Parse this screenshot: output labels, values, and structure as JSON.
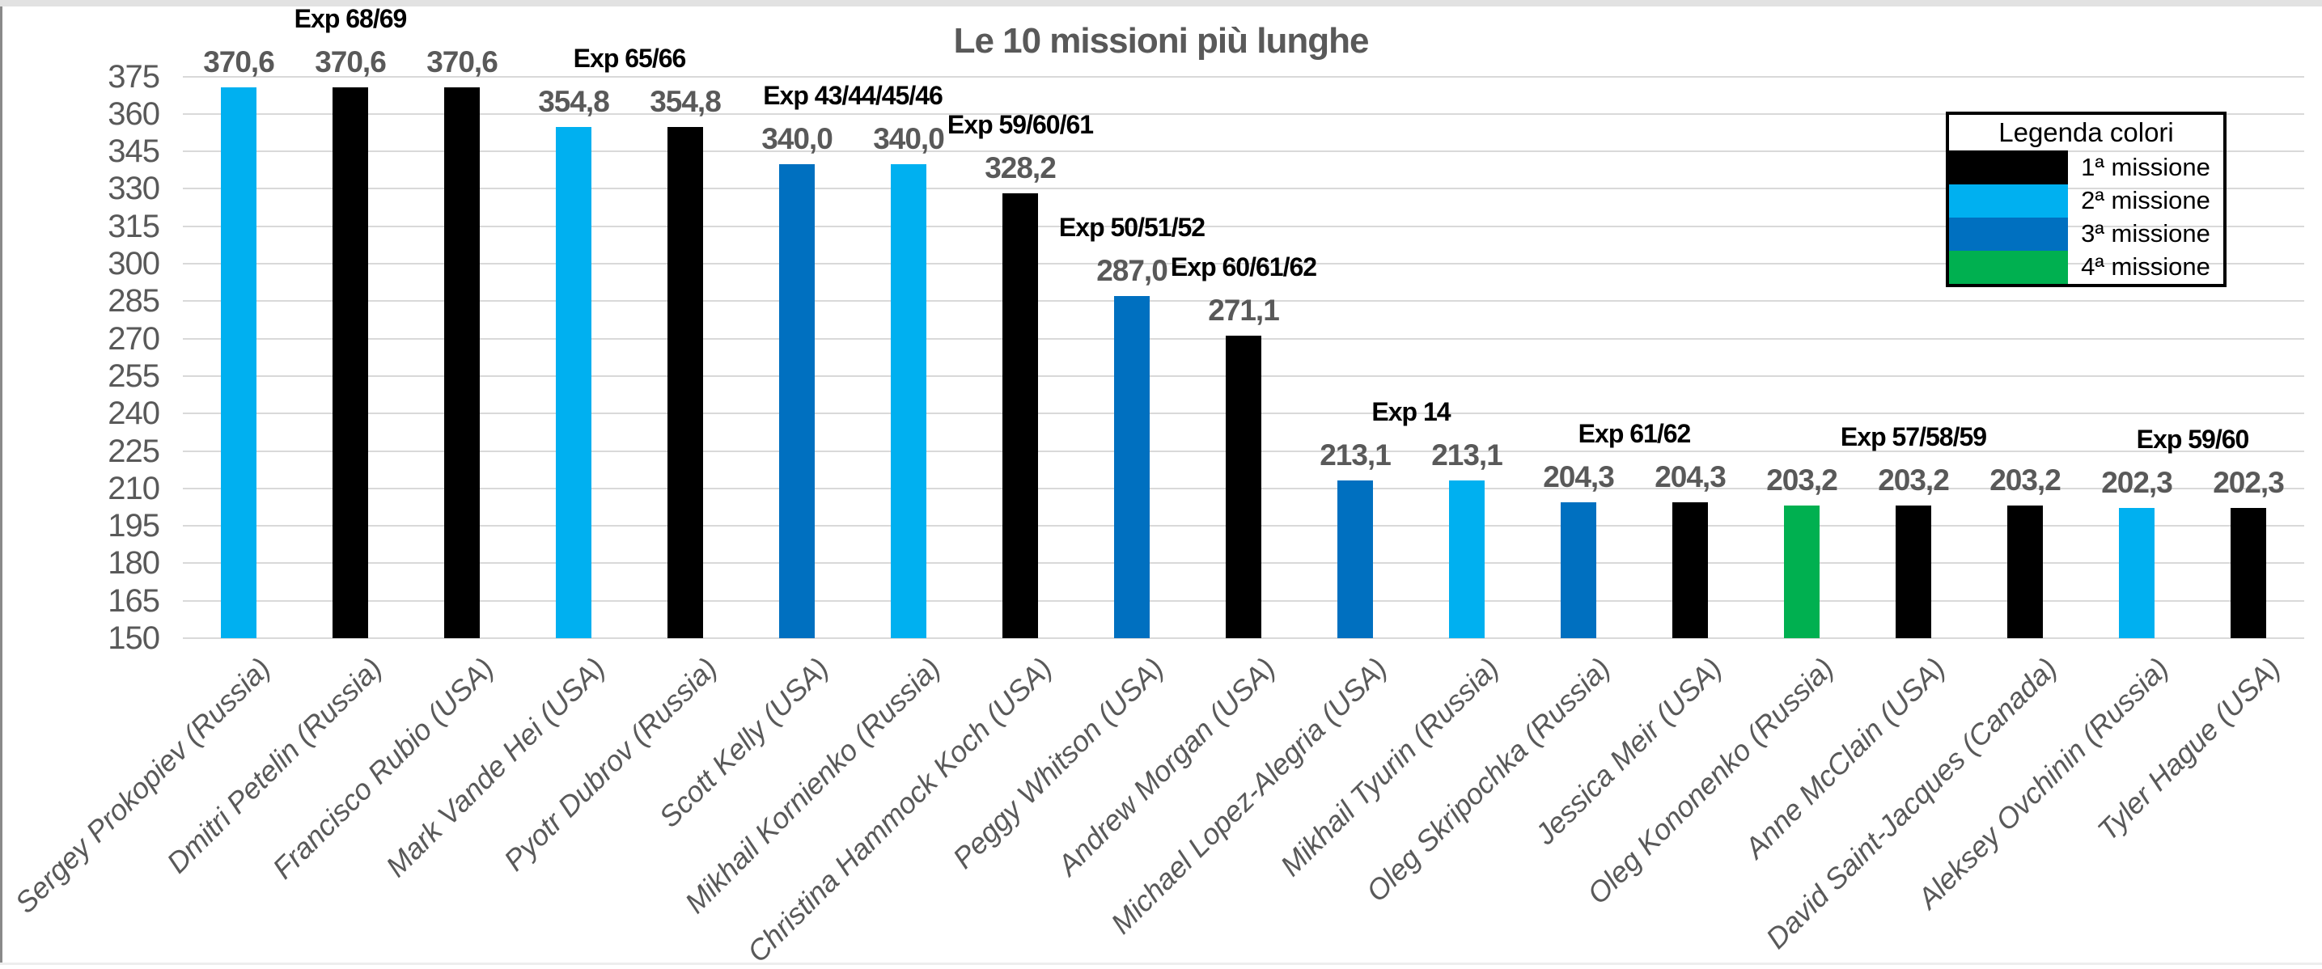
{
  "frame": {
    "note": "window edge strips"
  },
  "chart_data": {
    "type": "bar",
    "title": "Le 10 missioni più lunghe",
    "ylabel": "",
    "xlabel": "",
    "y_axis": {
      "min": 150,
      "max": 375,
      "step": 15
    },
    "grid": true,
    "decimal_separator": ",",
    "mission_colors": {
      "1": "#000000",
      "2": "#00B0F0",
      "3": "#0070C0",
      "4": "#00B050"
    },
    "text_colors": {
      "axis": "#595959",
      "value_label": "#595959",
      "annotation": "#000000",
      "gridline": "#d9d9d9"
    },
    "categories": [
      "Sergey Prokopiev (Russia)",
      "Dmitri Petelin (Russia)",
      "Francisco Rubio (USA)",
      "Mark Vande Hei (USA)",
      "Pyotr Dubrov (Russia)",
      "Scott Kelly (USA)",
      "Mikhail Kornienko (Russia)",
      "Christina Hammock Koch (USA)",
      "Peggy Whitson (USA)",
      "Andrew Morgan (USA)",
      "Michael Lopez-Alegria (USA)",
      "Mikhail Tyurin (Russia)",
      "Oleg Skripochka (Russia)",
      "Jessica Meir (USA)",
      "Oleg Kononenko (Russia)",
      "Anne McClain (USA)",
      "David Saint-Jacques (Canada)",
      "Aleksey Ovchinin (Russia)",
      "Tyler Hague (USA)"
    ],
    "bars": [
      {
        "name": "Sergey Prokopiev (Russia)",
        "value": 370.6,
        "label": "370,6",
        "mission": "2"
      },
      {
        "name": "Dmitri Petelin (Russia)",
        "value": 370.6,
        "label": "370,6",
        "mission": "1"
      },
      {
        "name": "Francisco Rubio (USA)",
        "value": 370.6,
        "label": "370,6",
        "mission": "1"
      },
      {
        "name": "Mark Vande Hei (USA)",
        "value": 354.8,
        "label": "354,8",
        "mission": "2"
      },
      {
        "name": "Pyotr Dubrov (Russia)",
        "value": 354.8,
        "label": "354,8",
        "mission": "1"
      },
      {
        "name": "Scott Kelly (USA)",
        "value": 340.0,
        "label": "340,0",
        "mission": "3"
      },
      {
        "name": "Mikhail Kornienko (Russia)",
        "value": 340.0,
        "label": "340,0",
        "mission": "2"
      },
      {
        "name": "Christina Hammock Koch (USA)",
        "value": 328.2,
        "label": "328,2",
        "mission": "1"
      },
      {
        "name": "Peggy Whitson (USA)",
        "value": 287.0,
        "label": "287,0",
        "mission": "3"
      },
      {
        "name": "Andrew Morgan (USA)",
        "value": 271.1,
        "label": "271,1",
        "mission": "1"
      },
      {
        "name": "Michael Lopez-Alegria (USA)",
        "value": 213.1,
        "label": "213,1",
        "mission": "3"
      },
      {
        "name": "Mikhail Tyurin (Russia)",
        "value": 213.1,
        "label": "213,1",
        "mission": "2"
      },
      {
        "name": "Oleg Skripochka (Russia)",
        "value": 204.3,
        "label": "204,3",
        "mission": "3"
      },
      {
        "name": "Jessica Meir (USA)",
        "value": 204.3,
        "label": "204,3",
        "mission": "1"
      },
      {
        "name": "Oleg Kononenko (Russia)",
        "value": 203.2,
        "label": "203,2",
        "mission": "4"
      },
      {
        "name": "Anne McClain (USA)",
        "value": 203.2,
        "label": "203,2",
        "mission": "1"
      },
      {
        "name": "David Saint-Jacques (Canada)",
        "value": 203.2,
        "label": "203,2",
        "mission": "1"
      },
      {
        "name": "Aleksey Ovchinin (Russia)",
        "value": 202.3,
        "label": "202,3",
        "mission": "2"
      },
      {
        "name": "Tyler Hague (USA)",
        "value": 202.3,
        "label": "202,3",
        "mission": "1"
      }
    ],
    "annotations": [
      {
        "label": "Exp 68/69",
        "anchor": 1,
        "value": 370.6
      },
      {
        "label": "Exp 65/66",
        "anchor": 3.5,
        "value": 354.8
      },
      {
        "label": "Exp 43/44/45/46",
        "anchor": 5.5,
        "value": 340.0
      },
      {
        "label": "Exp 59/60/61",
        "anchor": 7,
        "value": 328.2
      },
      {
        "label": "Exp 50/51/52",
        "anchor": 8,
        "value": 287.0
      },
      {
        "label": "Exp 60/61/62",
        "anchor": 9,
        "value": 271.1
      },
      {
        "label": "Exp 14",
        "anchor": 10.5,
        "value": 213.1
      },
      {
        "label": "Exp 61/62",
        "anchor": 12.5,
        "value": 204.3
      },
      {
        "label": "Exp 57/58/59",
        "anchor": 15,
        "value": 203.2
      },
      {
        "label": "Exp 59/60",
        "anchor": 17.5,
        "value": 202.3
      }
    ],
    "legend": {
      "title": "Legenda colori",
      "position": "top-right",
      "entries": [
        {
          "label": "1ª missione",
          "mission": "1"
        },
        {
          "label": "2ª missione",
          "mission": "2"
        },
        {
          "label": "3ª missione",
          "mission": "3"
        },
        {
          "label": "4ª missione",
          "mission": "4"
        }
      ]
    }
  }
}
